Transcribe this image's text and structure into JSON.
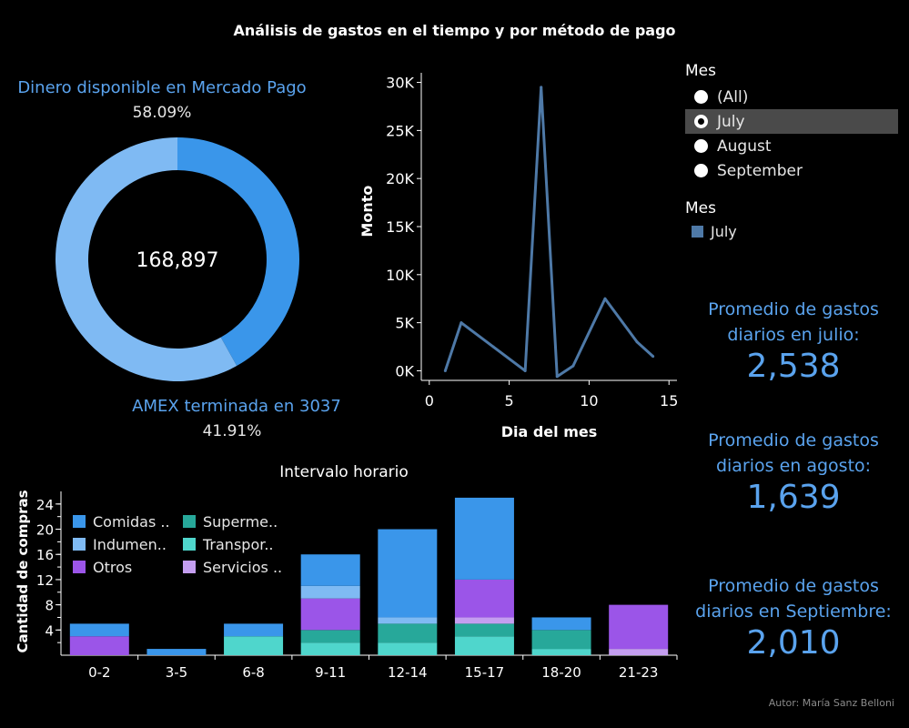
{
  "title": "Análisis de gastos en el tiempo y por método de pago",
  "donut": {
    "total": "168,897",
    "segments": [
      {
        "label": "Dinero disponible en Mercado Pago",
        "pct_label": "58.09%",
        "value": 58.09,
        "color": "#7fbaf3"
      },
      {
        "label": "AMEX terminada en 3037",
        "pct_label": "41.91%",
        "value": 41.91,
        "color": "#3a96ea"
      }
    ]
  },
  "line_chart": {
    "xlabel": "Dia del mes",
    "ylabel": "Monto",
    "line_color": "#4e79a7"
  },
  "filter": {
    "title": "Mes",
    "options": [
      "(All)",
      "July",
      "August",
      "September"
    ],
    "selected": "July"
  },
  "legend_mes": {
    "title": "Mes",
    "item": "July",
    "color": "#4e79a7"
  },
  "stats": [
    {
      "label_line1": "Promedio de gastos",
      "label_line2": "diarios en julio:",
      "value": "2,538"
    },
    {
      "label_line1": "Promedio de gastos",
      "label_line2": "diarios en agosto:",
      "value": "1,639"
    },
    {
      "label_line1": "Promedio de gastos",
      "label_line2": "diarios en Septiembre:",
      "value": "2,010"
    }
  ],
  "bar_chart": {
    "title": "Intervalo  horario",
    "ylabel": "Cantidad de compras"
  },
  "author": "Autor: María Sanz Belloni",
  "chart_data": [
    {
      "type": "pie",
      "title": "",
      "center_label": "168,897",
      "labels": [
        "Dinero disponible en Mercado Pago",
        "AMEX terminada en 3037"
      ],
      "values": [
        58.09,
        41.91
      ]
    },
    {
      "type": "line",
      "title": "",
      "xlabel": "Dia del mes",
      "ylabel": "Monto",
      "x": [
        1,
        2,
        4,
        6,
        7,
        8,
        9,
        11,
        13,
        14
      ],
      "series": [
        {
          "name": "July",
          "values": [
            0,
            5000,
            2500,
            0,
            29500,
            -600,
            500,
            7500,
            3000,
            1500
          ]
        }
      ],
      "xlim": [
        -0.5,
        15.5
      ],
      "ylim": [
        -1000,
        31000
      ],
      "xticks": [
        0,
        5,
        10,
        15
      ],
      "yticks": [
        0,
        5000,
        10000,
        15000,
        20000,
        25000,
        30000
      ],
      "ytick_labels": [
        "0K",
        "5K",
        "10K",
        "15K",
        "20K",
        "25K",
        "30K"
      ],
      "grid": false
    },
    {
      "type": "bar",
      "stacked": true,
      "title": "Intervalo  horario",
      "xlabel": "",
      "ylabel": "Cantidad de compras",
      "categories": [
        "0-2",
        "3-5",
        "6-8",
        "9-11",
        "12-14",
        "15-17",
        "18-20",
        "21-23"
      ],
      "series": [
        {
          "name": "Transpor..",
          "color": "#4fd6cc",
          "values": [
            0,
            0,
            3,
            2,
            2,
            3,
            1,
            0
          ]
        },
        {
          "name": "Superme..",
          "color": "#27a89a",
          "values": [
            0,
            0,
            0,
            2,
            3,
            2,
            3,
            0
          ]
        },
        {
          "name": "Servicios ..",
          "color": "#c49ef0",
          "values": [
            0,
            0,
            0,
            0,
            0,
            1,
            0,
            1
          ]
        },
        {
          "name": "Otros",
          "color": "#9b55e8",
          "values": [
            3,
            0,
            0,
            5,
            0,
            6,
            0,
            7
          ]
        },
        {
          "name": "Indumen..",
          "color": "#7fbaf3",
          "values": [
            0,
            0,
            0,
            2,
            1,
            0,
            0,
            0
          ]
        },
        {
          "name": "Comidas ..",
          "color": "#3a96ea",
          "values": [
            2,
            1,
            2,
            5,
            14,
            13,
            2,
            0
          ]
        }
      ],
      "legend_order": [
        "Comidas ..",
        "Superme..",
        "Indumen..",
        "Transpor..",
        "Otros",
        "Servicios .."
      ],
      "ylim": [
        0,
        26
      ],
      "yticks": [
        4,
        8,
        12,
        16,
        20,
        24
      ],
      "legend_position": "top-left"
    }
  ]
}
